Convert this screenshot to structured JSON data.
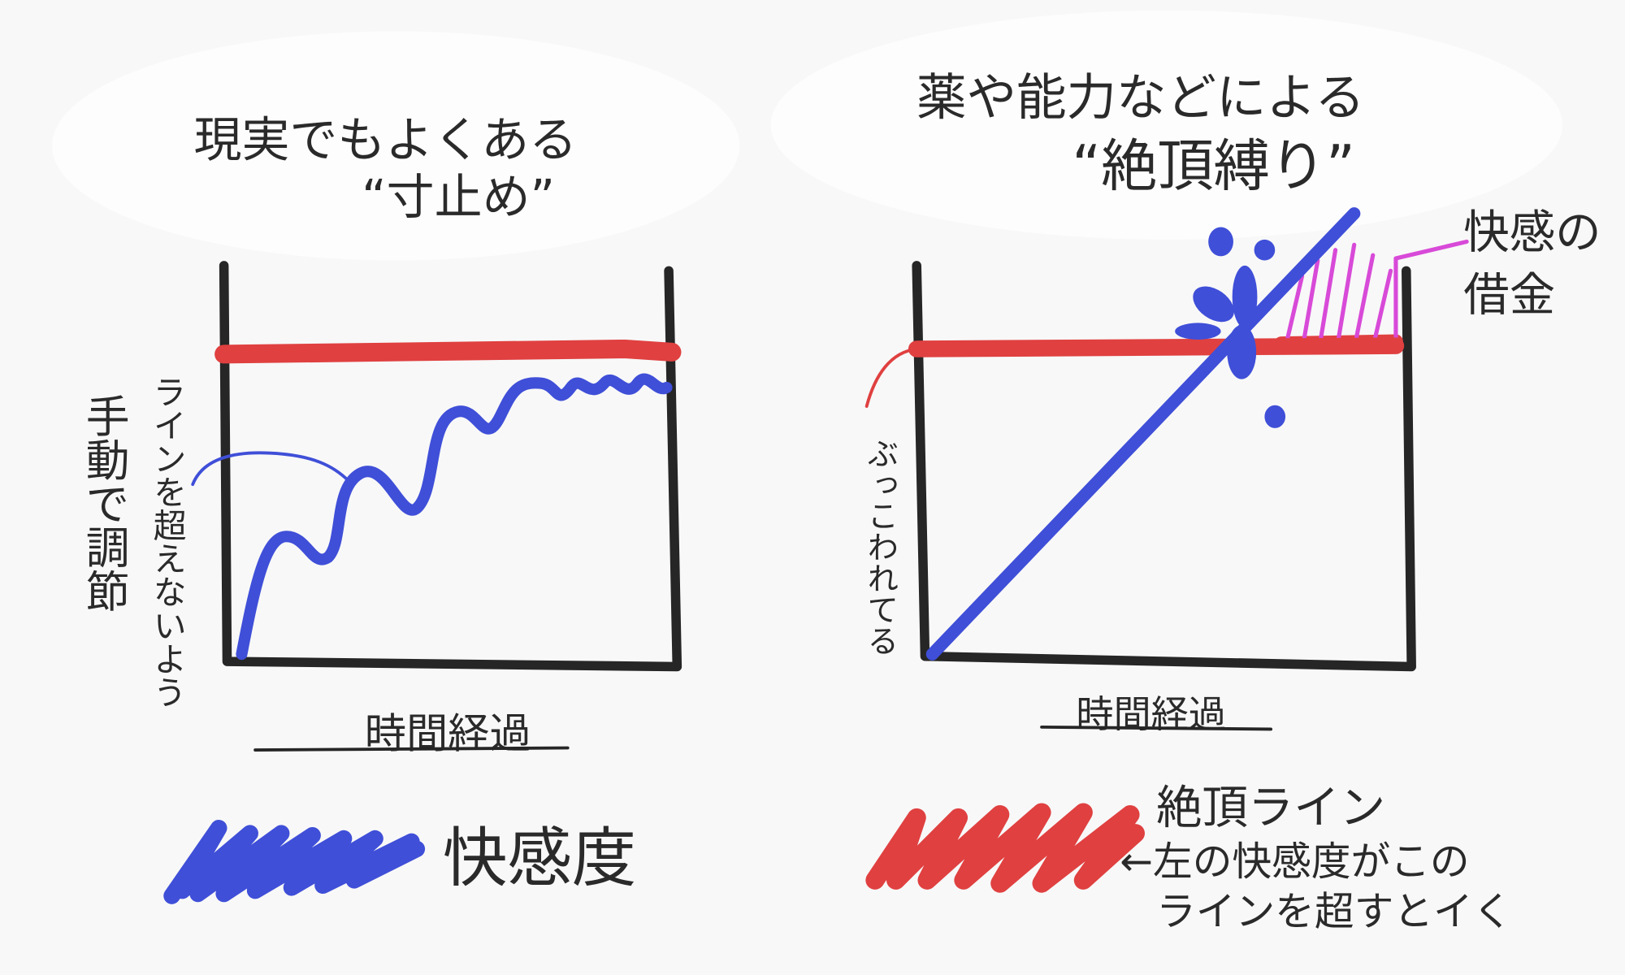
{
  "left_panel": {
    "title": [
      "現実でもよくある",
      "“寸止め”"
    ],
    "annotation": [
      "ラインを超えないよう",
      "手動で調節"
    ],
    "x_label": "時間経過",
    "legend": "快感度"
  },
  "right_panel": {
    "title": [
      "薬や能力などによる",
      "“絶頂縛り”"
    ],
    "annotation_right": [
      "快感の",
      "借金"
    ],
    "annotation_left": "ぶっこわれてる",
    "x_label": "時間経過",
    "legend": [
      "絶頂ライン",
      "←左の快感度がこの",
      "ラインを超すとイく"
    ]
  }
}
